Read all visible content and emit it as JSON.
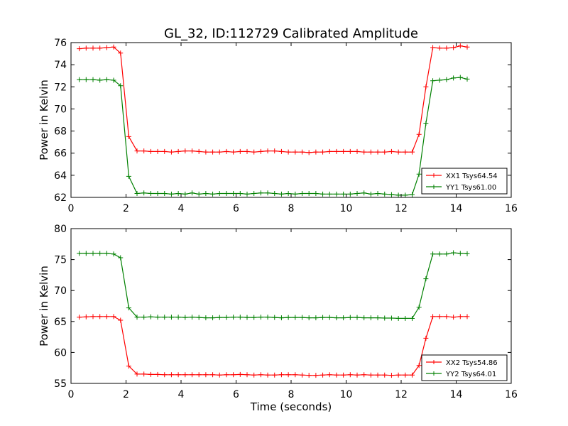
{
  "title": "GL_32, ID:112729 Calibrated Amplitude",
  "chart_data": [
    {
      "type": "line",
      "xlabel": "",
      "ylabel": "Power in Kelvin",
      "xlim": [
        0,
        16
      ],
      "ylim": [
        62,
        76
      ],
      "xticks": [
        0,
        2,
        4,
        6,
        8,
        10,
        12,
        14,
        16
      ],
      "yticks": [
        62,
        64,
        66,
        68,
        70,
        72,
        74,
        76
      ],
      "grid": false,
      "legend_position": "lower-right",
      "x": [
        0.3,
        0.55,
        0.8,
        1.05,
        1.3,
        1.55,
        1.8,
        2.1,
        2.4,
        2.65,
        2.9,
        3.15,
        3.4,
        3.65,
        3.9,
        4.15,
        4.4,
        4.65,
        4.9,
        5.15,
        5.4,
        5.65,
        5.9,
        6.15,
        6.4,
        6.65,
        6.9,
        7.15,
        7.4,
        7.65,
        7.9,
        8.15,
        8.4,
        8.65,
        8.9,
        9.15,
        9.4,
        9.65,
        9.9,
        10.15,
        10.4,
        10.65,
        10.9,
        11.15,
        11.4,
        11.65,
        11.9,
        12.15,
        12.4,
        12.65,
        12.9,
        13.15,
        13.4,
        13.65,
        13.9,
        14.15,
        14.4
      ],
      "series": [
        {
          "name": "XX1 Tsys64.54",
          "color": "#ff0000",
          "values": [
            75.45,
            75.5,
            75.5,
            75.5,
            75.55,
            75.6,
            75.05,
            67.5,
            66.2,
            66.2,
            66.15,
            66.15,
            66.15,
            66.1,
            66.15,
            66.2,
            66.2,
            66.15,
            66.1,
            66.1,
            66.1,
            66.15,
            66.1,
            66.15,
            66.15,
            66.1,
            66.15,
            66.2,
            66.2,
            66.15,
            66.1,
            66.1,
            66.1,
            66.05,
            66.1,
            66.1,
            66.15,
            66.15,
            66.15,
            66.15,
            66.15,
            66.1,
            66.1,
            66.1,
            66.1,
            66.15,
            66.1,
            66.1,
            66.1,
            67.7,
            72.0,
            75.55,
            75.5,
            75.5,
            75.55,
            75.7,
            75.6
          ]
        },
        {
          "name": "YY1 Tsys61.00",
          "color": "#008000",
          "values": [
            72.65,
            72.65,
            72.65,
            72.6,
            72.65,
            72.6,
            72.1,
            63.9,
            62.35,
            62.4,
            62.35,
            62.35,
            62.35,
            62.3,
            62.35,
            62.3,
            62.4,
            62.3,
            62.35,
            62.3,
            62.35,
            62.35,
            62.35,
            62.35,
            62.3,
            62.35,
            62.4,
            62.4,
            62.35,
            62.3,
            62.35,
            62.3,
            62.35,
            62.35,
            62.35,
            62.3,
            62.3,
            62.3,
            62.3,
            62.3,
            62.35,
            62.4,
            62.3,
            62.35,
            62.3,
            62.25,
            62.2,
            62.2,
            62.25,
            64.1,
            68.7,
            72.55,
            72.6,
            72.65,
            72.8,
            72.85,
            72.7
          ]
        }
      ]
    },
    {
      "type": "line",
      "xlabel": "Time (seconds)",
      "ylabel": "Power in Kelvin",
      "xlim": [
        0,
        16
      ],
      "ylim": [
        55,
        80
      ],
      "xticks": [
        0,
        2,
        4,
        6,
        8,
        10,
        12,
        14,
        16
      ],
      "yticks": [
        55,
        60,
        65,
        70,
        75,
        80
      ],
      "grid": false,
      "legend_position": "lower-right",
      "x": [
        0.3,
        0.55,
        0.8,
        1.05,
        1.3,
        1.55,
        1.8,
        2.1,
        2.4,
        2.65,
        2.9,
        3.15,
        3.4,
        3.65,
        3.9,
        4.15,
        4.4,
        4.65,
        4.9,
        5.15,
        5.4,
        5.65,
        5.9,
        6.15,
        6.4,
        6.65,
        6.9,
        7.15,
        7.4,
        7.65,
        7.9,
        8.15,
        8.4,
        8.65,
        8.9,
        9.15,
        9.4,
        9.65,
        9.9,
        10.15,
        10.4,
        10.65,
        10.9,
        11.15,
        11.4,
        11.65,
        11.9,
        12.15,
        12.4,
        12.65,
        12.9,
        13.15,
        13.4,
        13.65,
        13.9,
        14.15,
        14.4
      ],
      "series": [
        {
          "name": "XX2 Tsys54.86",
          "color": "#ff0000",
          "values": [
            65.7,
            65.75,
            65.8,
            65.8,
            65.8,
            65.8,
            65.2,
            57.8,
            56.5,
            56.5,
            56.45,
            56.45,
            56.4,
            56.4,
            56.4,
            56.4,
            56.4,
            56.4,
            56.4,
            56.4,
            56.35,
            56.4,
            56.4,
            56.45,
            56.4,
            56.35,
            56.4,
            56.35,
            56.35,
            56.4,
            56.4,
            56.4,
            56.35,
            56.3,
            56.3,
            56.35,
            56.4,
            56.35,
            56.35,
            56.4,
            56.35,
            56.4,
            56.35,
            56.35,
            56.35,
            56.3,
            56.35,
            56.35,
            56.35,
            57.9,
            62.3,
            65.8,
            65.8,
            65.8,
            65.7,
            65.8,
            65.8
          ]
        },
        {
          "name": "YY2 Tsys64.01",
          "color": "#008000",
          "values": [
            76.0,
            76.0,
            76.0,
            76.0,
            76.0,
            75.9,
            75.3,
            67.2,
            65.7,
            65.7,
            65.75,
            65.7,
            65.7,
            65.7,
            65.7,
            65.65,
            65.7,
            65.65,
            65.6,
            65.6,
            65.65,
            65.65,
            65.7,
            65.7,
            65.65,
            65.65,
            65.7,
            65.7,
            65.65,
            65.6,
            65.65,
            65.65,
            65.65,
            65.6,
            65.6,
            65.65,
            65.65,
            65.6,
            65.6,
            65.65,
            65.65,
            65.6,
            65.6,
            65.6,
            65.55,
            65.55,
            65.5,
            65.5,
            65.5,
            67.3,
            71.9,
            75.9,
            75.9,
            75.9,
            76.1,
            76.0,
            75.95
          ]
        }
      ]
    }
  ]
}
